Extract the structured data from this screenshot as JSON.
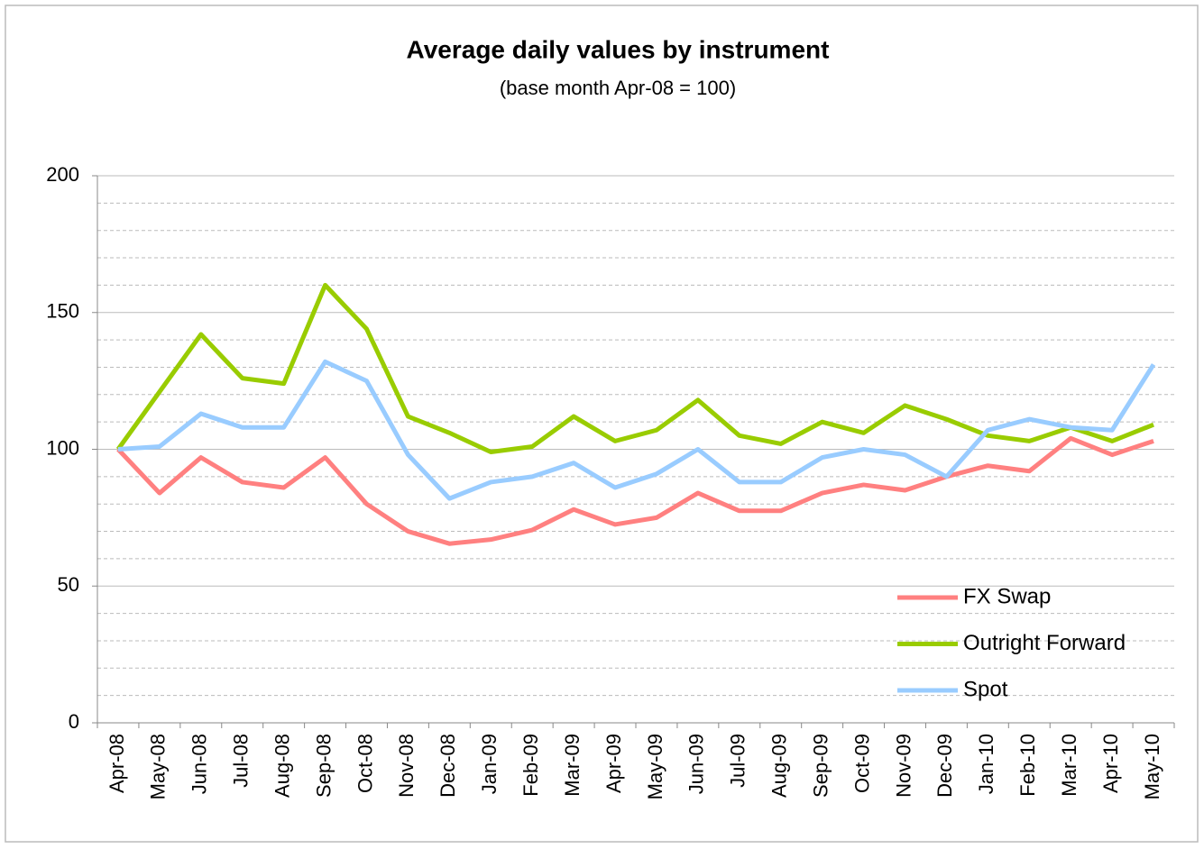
{
  "chart_data": {
    "type": "line",
    "title": "Average daily values by instrument",
    "subtitle": "(base month Apr-08 = 100)",
    "categories": [
      "Apr-08",
      "May-08",
      "Jun-08",
      "Jul-08",
      "Aug-08",
      "Sep-08",
      "Oct-08",
      "Nov-08",
      "Dec-08",
      "Jan-09",
      "Feb-09",
      "Mar-09",
      "Apr-09",
      "May-09",
      "Jun-09",
      "Jul-09",
      "Aug-09",
      "Sep-09",
      "Oct-09",
      "Nov-09",
      "Dec-09",
      "Jan-10",
      "Feb-10",
      "Mar-10",
      "Apr-10",
      "May-10"
    ],
    "series": [
      {
        "name": "FX Swap",
        "color": "#ff8080",
        "values": [
          100,
          84,
          97,
          88,
          86,
          97,
          80,
          70,
          65.5,
          67,
          70.5,
          78,
          72.5,
          75,
          84,
          77.5,
          77.5,
          84,
          87,
          85,
          90,
          94,
          92,
          104,
          98,
          103
        ]
      },
      {
        "name": "Outright Forward",
        "color": "#99cc00",
        "values": [
          100,
          121,
          142,
          126,
          124,
          160,
          144,
          112,
          106,
          99,
          101,
          112,
          103,
          107,
          118,
          105,
          102,
          110,
          106,
          116,
          111,
          105,
          103,
          108,
          103,
          109
        ]
      },
      {
        "name": "Spot",
        "color": "#99ccff",
        "values": [
          100,
          101,
          113,
          108,
          108,
          132,
          125,
          98,
          82,
          88,
          90,
          95,
          86,
          91,
          100,
          88,
          88,
          97,
          100,
          98,
          90,
          107,
          111,
          108,
          107,
          131
        ]
      }
    ],
    "ylim": [
      0,
      200
    ],
    "yticks": [
      0,
      50,
      100,
      150,
      200
    ],
    "yminor": [
      10,
      20,
      30,
      40,
      60,
      70,
      80,
      90,
      110,
      120,
      130,
      140,
      160,
      170,
      180,
      190
    ],
    "grid": true,
    "legend": "lower right"
  }
}
